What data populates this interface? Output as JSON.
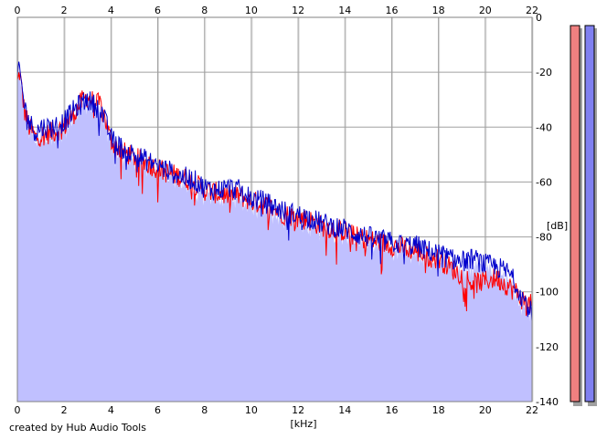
{
  "credit": "created by Hub Audio Tools",
  "chart_data": {
    "type": "line",
    "title": "",
    "xlabel": "[kHz]",
    "ylabel": "[dB]",
    "xlim": [
      0,
      22
    ],
    "ylim": [
      -140,
      0
    ],
    "x_ticks": [
      0,
      2,
      4,
      6,
      8,
      10,
      12,
      14,
      16,
      18,
      20,
      22
    ],
    "y_ticks": [
      0,
      -20,
      -40,
      -60,
      -80,
      -100,
      -120,
      -140
    ],
    "grid": true,
    "legend": "none",
    "colors": {
      "left_channel": "#ff0000",
      "right_channel": "#0000cc",
      "fill": "#c0c0ff",
      "meter_left": "#f08080",
      "meter_right": "#8080f0"
    },
    "series": [
      {
        "color": "#ff0000",
        "x": [
          0.0,
          0.1,
          0.2,
          0.3,
          0.5,
          0.8,
          1.0,
          1.5,
          2.0,
          2.5,
          2.8,
          3.0,
          3.3,
          3.6,
          4.0,
          4.5,
          5.0,
          5.5,
          6.0,
          6.5,
          7.0,
          7.5,
          8.0,
          8.5,
          9.0,
          9.5,
          10.0,
          10.5,
          11.0,
          11.5,
          12.0,
          12.5,
          13.0,
          13.5,
          14.0,
          14.5,
          15.0,
          15.5,
          16.0,
          16.5,
          17.0,
          17.5,
          18.0,
          18.5,
          19.0,
          19.5,
          20.0,
          20.5,
          21.0,
          21.3,
          21.6,
          22.0
        ],
        "values": [
          -24,
          -20,
          -27,
          -34,
          -40,
          -44,
          -43,
          -42,
          -40,
          -34,
          -30,
          -29,
          -31,
          -32,
          -45,
          -49,
          -51,
          -53,
          -55,
          -57,
          -58,
          -60,
          -63,
          -64,
          -65,
          -65,
          -67,
          -68,
          -70,
          -72,
          -73,
          -74,
          -76,
          -77,
          -78,
          -80,
          -81,
          -82,
          -83,
          -84,
          -85,
          -87,
          -88,
          -91,
          -94,
          -97,
          -96,
          -95,
          -98,
          -100,
          -103,
          -105
        ]
      },
      {
        "color": "#0000cc",
        "x": [
          0.0,
          0.1,
          0.2,
          0.3,
          0.5,
          0.8,
          1.0,
          1.5,
          2.0,
          2.5,
          2.8,
          3.0,
          3.3,
          3.6,
          4.0,
          4.5,
          5.0,
          5.5,
          6.0,
          6.5,
          7.0,
          7.5,
          8.0,
          8.5,
          9.0,
          9.5,
          10.0,
          10.5,
          11.0,
          11.5,
          12.0,
          12.5,
          13.0,
          13.5,
          14.0,
          14.5,
          15.0,
          15.5,
          16.0,
          16.5,
          17.0,
          17.5,
          18.0,
          18.5,
          19.0,
          19.5,
          20.0,
          20.5,
          21.0,
          21.3,
          21.6,
          22.0
        ],
        "values": [
          -22,
          -19,
          -26,
          -32,
          -38,
          -42,
          -40,
          -40,
          -38,
          -33,
          -31,
          -30,
          -32,
          -34,
          -44,
          -48,
          -50,
          -52,
          -54,
          -56,
          -58,
          -59,
          -62,
          -63,
          -62,
          -63,
          -66,
          -67,
          -69,
          -71,
          -72,
          -73,
          -75,
          -76,
          -77,
          -79,
          -80,
          -81,
          -82,
          -83,
          -83,
          -85,
          -86,
          -88,
          -89,
          -88,
          -90,
          -91,
          -93,
          -97,
          -102,
          -108
        ]
      }
    ]
  }
}
